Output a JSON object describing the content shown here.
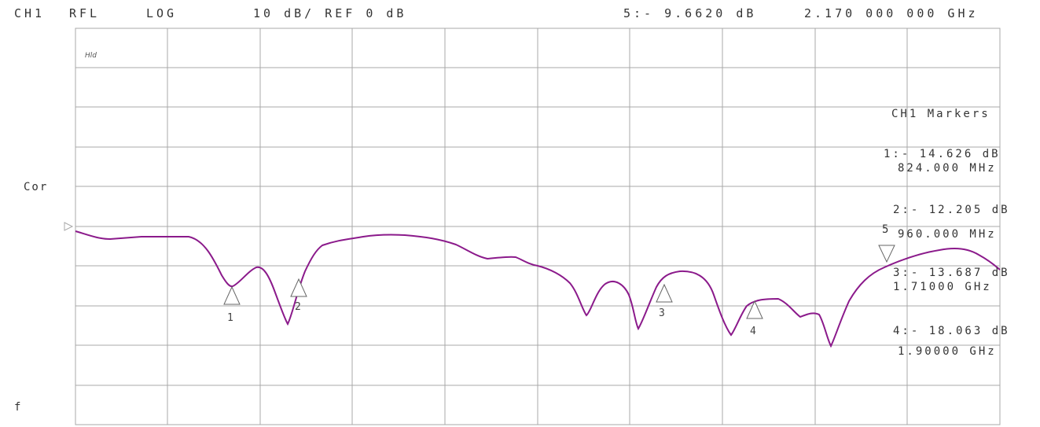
{
  "header": {
    "channel": "CH1",
    "measurement": "RFL",
    "format": "LOG",
    "scale": "10 dB/ REF 0 dB",
    "active_marker": "5:- 9.6620 dB",
    "active_freq": "2.170 000 000 GHz"
  },
  "side": {
    "correction": "Cor",
    "bottom_label": "f",
    "plot_tag": "Hld"
  },
  "markers_panel": {
    "title": "CH1 Markers",
    "entries": [
      {
        "value": "1:- 14.626 dB",
        "freq": "824.000 MHz"
      },
      {
        "value": "2:- 12.205 dB",
        "freq": "960.000 MHz"
      },
      {
        "value": "3:- 13.687 dB",
        "freq": "1.71000 GHz"
      },
      {
        "value": "4:- 18.063 dB",
        "freq": "1.90000 GHz"
      }
    ],
    "marker5_prefix": "5"
  },
  "trace_markers": [
    "1",
    "2",
    "3",
    "4",
    "5"
  ],
  "colors": {
    "trace": "#8b1a8b",
    "grid": "#a8a8a8",
    "text": "#333333"
  }
}
